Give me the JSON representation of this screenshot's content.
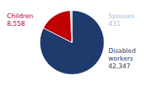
{
  "chart_data": {
    "type": "pie",
    "categories": [
      "Disabled workers",
      "Children",
      "Spouses"
    ],
    "values": [
      42347,
      8558,
      431
    ],
    "value_labels": [
      "42,347",
      "8,558",
      "431"
    ],
    "colors": [
      "#1f3b6e",
      "#c00000",
      "#9dc3e6"
    ],
    "data_labels": true
  }
}
